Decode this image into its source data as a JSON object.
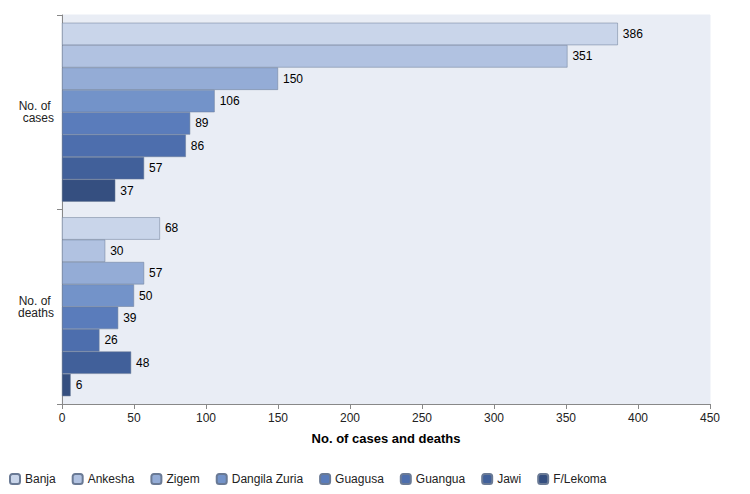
{
  "chart_data": {
    "type": "bar",
    "orientation": "horizontal",
    "xlabel": "No. of cases and deaths",
    "categories": [
      "No. of cases",
      "No. of deaths"
    ],
    "series": [
      {
        "name": "Banja",
        "color": "#c9d5ea",
        "values": [
          386,
          68
        ]
      },
      {
        "name": "Ankesha",
        "color": "#b1c2e1",
        "values": [
          351,
          30
        ]
      },
      {
        "name": "Zigem",
        "color": "#94acd6",
        "values": [
          150,
          57
        ]
      },
      {
        "name": "Dangila Zuria",
        "color": "#7393c9",
        "values": [
          106,
          50
        ]
      },
      {
        "name": "Guagusa",
        "color": "#5a7cbb",
        "values": [
          89,
          39
        ]
      },
      {
        "name": "Guangua",
        "color": "#4d6ead",
        "values": [
          86,
          26
        ]
      },
      {
        "name": "Jawi",
        "color": "#41609a",
        "values": [
          57,
          48
        ]
      },
      {
        "name": "F/Lekoma",
        "color": "#354f80",
        "values": [
          37,
          6
        ]
      }
    ],
    "xlim": [
      0,
      450
    ],
    "xticks": [
      0,
      50,
      100,
      150,
      200,
      250,
      300,
      350,
      400,
      450
    ],
    "grid": false,
    "legend": "bottom",
    "data_labels": true
  }
}
